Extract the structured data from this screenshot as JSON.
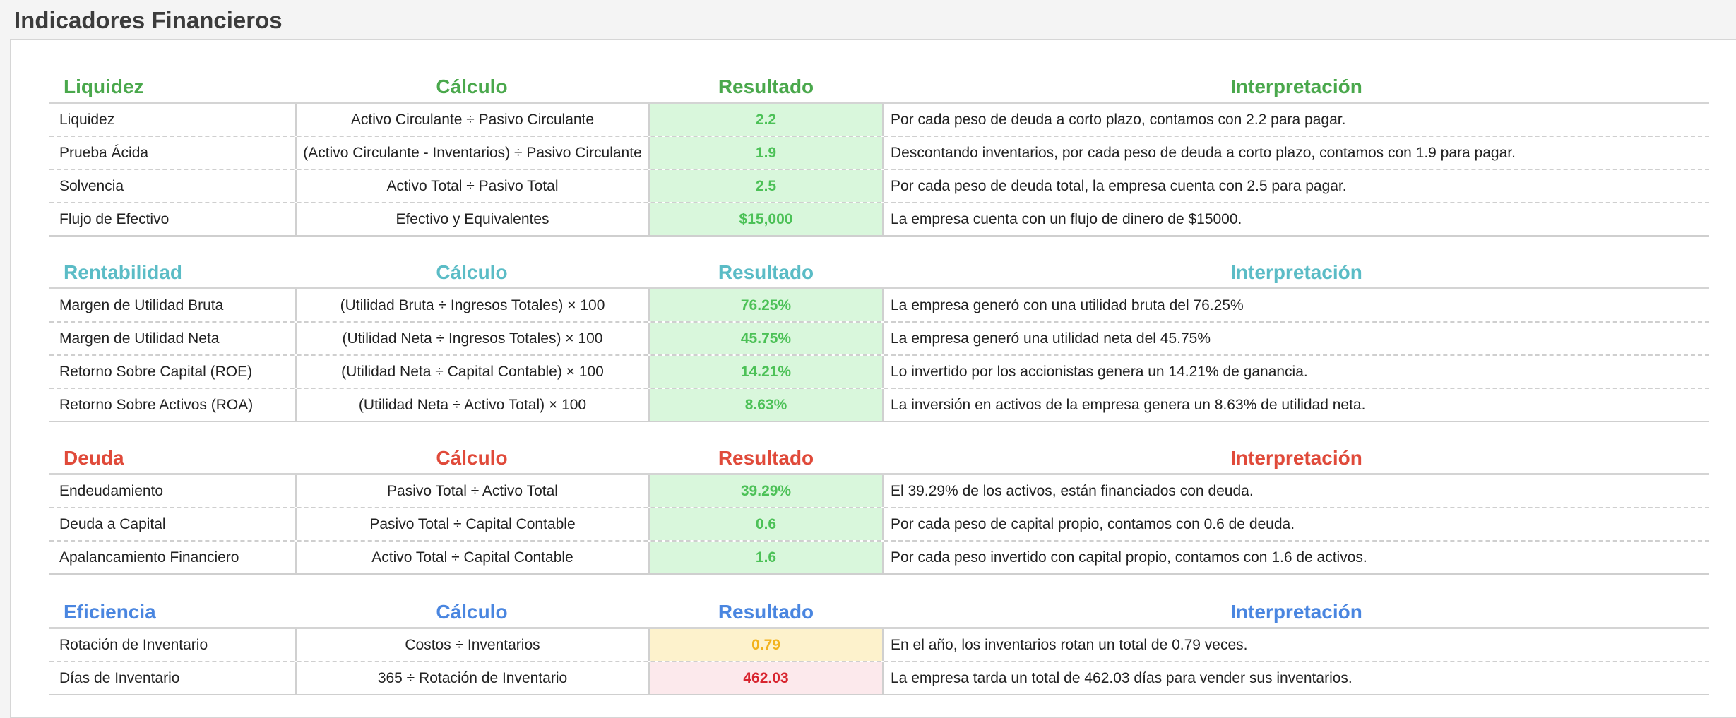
{
  "page": {
    "title": "Indicadores Financieros"
  },
  "colors": {
    "liquidez": "#4aa84c",
    "rentabilidad": "#5bbcc6",
    "deuda": "#e04a3a",
    "eficiencia": "#4a86e0",
    "result_good_bg": "#d9f7dc",
    "result_good_text": "#4cc157",
    "result_warn_bg": "#fdf2cc",
    "result_warn_text": "#f2b21c",
    "result_bad_bg": "#fce9ec",
    "result_bad_text": "#d8242e"
  },
  "sections": [
    {
      "name": "Liquidez",
      "calc_header": "Cálculo",
      "result_header": "Resultado",
      "interp_header": "Interpretación",
      "rows": [
        {
          "name": "Liquidez",
          "calc": "Activo Circulante ÷ Pasivo Circulante",
          "result": "2.2",
          "status": "good",
          "interp": "Por cada peso de deuda a corto plazo, contamos con 2.2  para pagar."
        },
        {
          "name": "Prueba Ácida",
          "calc": "(Activo Circulante - Inventarios) ÷ Pasivo Circulante",
          "result": "1.9",
          "status": "good",
          "interp": "Descontando inventarios, por cada peso de deuda a corto plazo, contamos con 1.9  para pagar."
        },
        {
          "name": "Solvencia",
          "calc": "Activo Total ÷ Pasivo Total",
          "result": "2.5",
          "status": "good",
          "interp": "Por cada peso de deuda total, la empresa cuenta con 2.5  para pagar."
        },
        {
          "name": "Flujo de Efectivo",
          "calc": "Efectivo y Equivalentes",
          "result": "$15,000",
          "status": "good",
          "interp": "La empresa cuenta con un flujo de dinero de $15000."
        }
      ]
    },
    {
      "name": "Rentabilidad",
      "calc_header": "Cálculo",
      "result_header": "Resultado",
      "interp_header": "Interpretación",
      "rows": [
        {
          "name": "Margen de Utilidad Bruta",
          "calc": "(Utilidad Bruta ÷ Ingresos Totales) × 100",
          "result": "76.25%",
          "status": "good",
          "interp": "La empresa generó con una utilidad bruta del 76.25%"
        },
        {
          "name": "Margen de Utilidad Neta",
          "calc": "(Utilidad Neta ÷ Ingresos Totales) × 100",
          "result": "45.75%",
          "status": "good",
          "interp": "La empresa generó una utilidad neta del 45.75%"
        },
        {
          "name": "Retorno Sobre Capital (ROE)",
          "calc": "(Utilidad Neta ÷ Capital Contable) × 100",
          "result": "14.21%",
          "status": "good",
          "interp": "Lo invertido por los accionistas genera un 14.21% de ganancia."
        },
        {
          "name": "Retorno Sobre Activos (ROA)",
          "calc": "(Utilidad Neta ÷ Activo Total) × 100",
          "result": "8.63%",
          "status": "good",
          "interp": "La inversión en activos de la empresa genera un 8.63% de utilidad neta."
        }
      ]
    },
    {
      "name": "Deuda",
      "calc_header": "Cálculo",
      "result_header": "Resultado",
      "interp_header": "Interpretación",
      "rows": [
        {
          "name": "Endeudamiento",
          "calc": "Pasivo Total ÷ Activo Total",
          "result": "39.29%",
          "status": "good",
          "interp": "El 39.29% de los activos, están financiados con deuda."
        },
        {
          "name": "Deuda a Capital",
          "calc": "Pasivo Total ÷ Capital Contable",
          "result": "0.6",
          "status": "good",
          "interp": "Por cada peso de capital propio, contamos con 0.6  de deuda."
        },
        {
          "name": "Apalancamiento Financiero",
          "calc": "Activo Total ÷ Capital Contable",
          "result": "1.6",
          "status": "good",
          "interp": "Por cada peso invertido con capital propio, contamos con 1.6  de activos."
        }
      ]
    },
    {
      "name": "Eficiencia",
      "calc_header": "Cálculo",
      "result_header": "Resultado",
      "interp_header": "Interpretación",
      "rows": [
        {
          "name": "Rotación de Inventario",
          "calc": "Costos ÷ Inventarios",
          "result": "0.79",
          "status": "warn",
          "interp": "En el año, los inventarios rotan un total de 0.79 veces."
        },
        {
          "name": "Días de Inventario",
          "calc": "365 ÷ Rotación de Inventario",
          "result": "462.03",
          "status": "bad",
          "interp": "La empresa tarda un total de 462.03 días para vender sus inventarios."
        }
      ]
    }
  ]
}
